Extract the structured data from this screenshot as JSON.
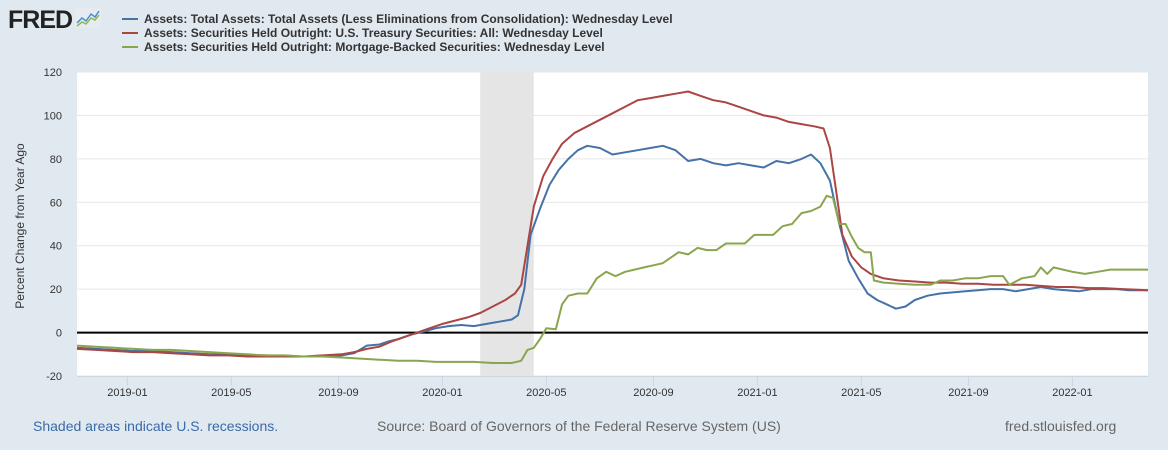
{
  "header": {
    "logo_text": "FRED",
    "logo_icon": "line-chart-icon"
  },
  "footer": {
    "recession_note": "Shaded areas indicate U.S. recessions.",
    "source": "Source: Board of Governors of the Federal Reserve System (US)",
    "site": "fred.stlouisfed.org"
  },
  "chart_data": {
    "type": "line",
    "title": "",
    "xlabel": "",
    "ylabel": "Percent Change from Year Ago",
    "xlim": [
      2018.84,
      2022.24
    ],
    "ylim": [
      -20,
      120
    ],
    "yticks": [
      -20,
      0,
      20,
      40,
      60,
      80,
      100,
      120
    ],
    "xticks": [
      {
        "label": "2019-01",
        "x": 2019.0
      },
      {
        "label": "2019-05",
        "x": 2019.33
      },
      {
        "label": "2019-09",
        "x": 2019.67
      },
      {
        "label": "2020-01",
        "x": 2020.0
      },
      {
        "label": "2020-05",
        "x": 2020.33
      },
      {
        "label": "2020-09",
        "x": 2020.67
      },
      {
        "label": "2021-01",
        "x": 2021.0
      },
      {
        "label": "2021-05",
        "x": 2021.33
      },
      {
        "label": "2021-09",
        "x": 2021.67
      },
      {
        "label": "2022-01",
        "x": 2022.0
      }
    ],
    "grid": true,
    "zero_line": true,
    "legend": "top",
    "recessions": [
      {
        "start": 2020.12,
        "end": 2020.29
      }
    ],
    "series": [
      {
        "name": "Assets: Total Assets: Total Assets (Less Eliminations from Consolidation): Wednesday Level",
        "color": "#4572a7",
        "points": [
          [
            2018.84,
            -7
          ],
          [
            2018.9,
            -7.5
          ],
          [
            2018.96,
            -8
          ],
          [
            2019.02,
            -8.5
          ],
          [
            2019.08,
            -8.5
          ],
          [
            2019.14,
            -9
          ],
          [
            2019.2,
            -9.5
          ],
          [
            2019.26,
            -10
          ],
          [
            2019.32,
            -10
          ],
          [
            2019.38,
            -10.5
          ],
          [
            2019.44,
            -10.5
          ],
          [
            2019.5,
            -11
          ],
          [
            2019.56,
            -11
          ],
          [
            2019.62,
            -11
          ],
          [
            2019.68,
            -10.5
          ],
          [
            2019.72,
            -9.5
          ],
          [
            2019.76,
            -6
          ],
          [
            2019.8,
            -5.5
          ],
          [
            2019.83,
            -4
          ],
          [
            2019.86,
            -3
          ],
          [
            2019.9,
            -1
          ],
          [
            2019.94,
            0.5
          ],
          [
            2019.98,
            2
          ],
          [
            2020.02,
            3
          ],
          [
            2020.06,
            3.5
          ],
          [
            2020.1,
            3
          ],
          [
            2020.14,
            4
          ],
          [
            2020.18,
            5
          ],
          [
            2020.22,
            6
          ],
          [
            2020.24,
            8
          ],
          [
            2020.26,
            20
          ],
          [
            2020.28,
            45
          ],
          [
            2020.31,
            57
          ],
          [
            2020.34,
            68
          ],
          [
            2020.37,
            75
          ],
          [
            2020.4,
            80
          ],
          [
            2020.43,
            84
          ],
          [
            2020.46,
            86
          ],
          [
            2020.5,
            85
          ],
          [
            2020.54,
            82
          ],
          [
            2020.58,
            83
          ],
          [
            2020.62,
            84
          ],
          [
            2020.66,
            85
          ],
          [
            2020.7,
            86
          ],
          [
            2020.74,
            84
          ],
          [
            2020.78,
            79
          ],
          [
            2020.82,
            80
          ],
          [
            2020.86,
            78
          ],
          [
            2020.9,
            77
          ],
          [
            2020.94,
            78
          ],
          [
            2020.98,
            77
          ],
          [
            2021.02,
            76
          ],
          [
            2021.06,
            79
          ],
          [
            2021.1,
            78
          ],
          [
            2021.14,
            80
          ],
          [
            2021.17,
            82
          ],
          [
            2021.2,
            78
          ],
          [
            2021.23,
            70
          ],
          [
            2021.26,
            50
          ],
          [
            2021.29,
            33
          ],
          [
            2021.32,
            25
          ],
          [
            2021.35,
            18
          ],
          [
            2021.38,
            15
          ],
          [
            2021.41,
            13
          ],
          [
            2021.44,
            11
          ],
          [
            2021.47,
            12
          ],
          [
            2021.5,
            15
          ],
          [
            2021.54,
            17
          ],
          [
            2021.58,
            18
          ],
          [
            2021.62,
            18.5
          ],
          [
            2021.66,
            19
          ],
          [
            2021.7,
            19.5
          ],
          [
            2021.74,
            20
          ],
          [
            2021.78,
            20
          ],
          [
            2021.82,
            19
          ],
          [
            2021.86,
            20
          ],
          [
            2021.9,
            21
          ],
          [
            2021.94,
            20
          ],
          [
            2021.98,
            19.5
          ],
          [
            2022.02,
            19
          ],
          [
            2022.06,
            20
          ],
          [
            2022.1,
            20
          ],
          [
            2022.14,
            20
          ],
          [
            2022.18,
            19.5
          ],
          [
            2022.24,
            19.5
          ]
        ]
      },
      {
        "name": "Assets: Securities Held Outright: U.S. Treasury Securities: All: Wednesday Level",
        "color": "#aa4643",
        "points": [
          [
            2018.84,
            -7.5
          ],
          [
            2018.9,
            -8
          ],
          [
            2018.96,
            -8.5
          ],
          [
            2019.02,
            -9
          ],
          [
            2019.08,
            -9
          ],
          [
            2019.14,
            -9.5
          ],
          [
            2019.2,
            -10
          ],
          [
            2019.26,
            -10.5
          ],
          [
            2019.32,
            -10.5
          ],
          [
            2019.38,
            -11
          ],
          [
            2019.44,
            -11
          ],
          [
            2019.5,
            -11
          ],
          [
            2019.56,
            -11
          ],
          [
            2019.62,
            -10.5
          ],
          [
            2019.68,
            -10
          ],
          [
            2019.72,
            -9
          ],
          [
            2019.76,
            -7.5
          ],
          [
            2019.8,
            -6.5
          ],
          [
            2019.84,
            -4
          ],
          [
            2019.88,
            -2
          ],
          [
            2019.92,
            0
          ],
          [
            2019.96,
            2
          ],
          [
            2020.0,
            4
          ],
          [
            2020.04,
            5.5
          ],
          [
            2020.08,
            7
          ],
          [
            2020.12,
            9
          ],
          [
            2020.16,
            12
          ],
          [
            2020.2,
            15
          ],
          [
            2020.23,
            18
          ],
          [
            2020.25,
            22
          ],
          [
            2020.27,
            40
          ],
          [
            2020.29,
            58
          ],
          [
            2020.32,
            72
          ],
          [
            2020.35,
            80
          ],
          [
            2020.38,
            87
          ],
          [
            2020.42,
            92
          ],
          [
            2020.46,
            95
          ],
          [
            2020.5,
            98
          ],
          [
            2020.54,
            101
          ],
          [
            2020.58,
            104
          ],
          [
            2020.62,
            107
          ],
          [
            2020.66,
            108
          ],
          [
            2020.7,
            109
          ],
          [
            2020.74,
            110
          ],
          [
            2020.78,
            111
          ],
          [
            2020.82,
            109
          ],
          [
            2020.86,
            107
          ],
          [
            2020.9,
            106
          ],
          [
            2020.94,
            104
          ],
          [
            2020.98,
            102
          ],
          [
            2021.02,
            100
          ],
          [
            2021.06,
            99
          ],
          [
            2021.1,
            97
          ],
          [
            2021.14,
            96
          ],
          [
            2021.18,
            95
          ],
          [
            2021.21,
            94
          ],
          [
            2021.23,
            85
          ],
          [
            2021.25,
            65
          ],
          [
            2021.27,
            45
          ],
          [
            2021.3,
            35
          ],
          [
            2021.33,
            30
          ],
          [
            2021.36,
            27
          ],
          [
            2021.4,
            25
          ],
          [
            2021.45,
            24
          ],
          [
            2021.5,
            23.5
          ],
          [
            2021.55,
            23
          ],
          [
            2021.6,
            23
          ],
          [
            2021.65,
            22.5
          ],
          [
            2021.7,
            22.5
          ],
          [
            2021.75,
            22
          ],
          [
            2021.8,
            22
          ],
          [
            2021.85,
            22
          ],
          [
            2021.9,
            21.5
          ],
          [
            2021.95,
            21
          ],
          [
            2022.0,
            21
          ],
          [
            2022.05,
            20.5
          ],
          [
            2022.1,
            20.5
          ],
          [
            2022.16,
            20
          ],
          [
            2022.24,
            19.5
          ]
        ]
      },
      {
        "name": "Assets: Securities Held Outright: Mortgage-Backed Securities: Wednesday Level",
        "color": "#89a54e",
        "points": [
          [
            2018.84,
            -6
          ],
          [
            2018.9,
            -6.5
          ],
          [
            2018.96,
            -7
          ],
          [
            2019.02,
            -7.5
          ],
          [
            2019.08,
            -8
          ],
          [
            2019.14,
            -8
          ],
          [
            2019.2,
            -8.5
          ],
          [
            2019.26,
            -9
          ],
          [
            2019.32,
            -9.5
          ],
          [
            2019.38,
            -10
          ],
          [
            2019.44,
            -10.5
          ],
          [
            2019.5,
            -10.5
          ],
          [
            2019.56,
            -11
          ],
          [
            2019.62,
            -11
          ],
          [
            2019.68,
            -11.5
          ],
          [
            2019.74,
            -12
          ],
          [
            2019.8,
            -12.5
          ],
          [
            2019.86,
            -13
          ],
          [
            2019.92,
            -13
          ],
          [
            2019.98,
            -13.5
          ],
          [
            2020.04,
            -13.5
          ],
          [
            2020.1,
            -13.5
          ],
          [
            2020.16,
            -14
          ],
          [
            2020.22,
            -14
          ],
          [
            2020.25,
            -13
          ],
          [
            2020.27,
            -8
          ],
          [
            2020.29,
            -7
          ],
          [
            2020.31,
            -3
          ],
          [
            2020.33,
            2
          ],
          [
            2020.36,
            1.5
          ],
          [
            2020.38,
            13
          ],
          [
            2020.4,
            17
          ],
          [
            2020.43,
            18
          ],
          [
            2020.46,
            18
          ],
          [
            2020.49,
            25
          ],
          [
            2020.52,
            28
          ],
          [
            2020.55,
            26
          ],
          [
            2020.58,
            28
          ],
          [
            2020.61,
            29
          ],
          [
            2020.64,
            30
          ],
          [
            2020.67,
            31
          ],
          [
            2020.7,
            32
          ],
          [
            2020.72,
            34
          ],
          [
            2020.75,
            37
          ],
          [
            2020.78,
            36
          ],
          [
            2020.81,
            39
          ],
          [
            2020.84,
            38
          ],
          [
            2020.87,
            38
          ],
          [
            2020.9,
            41
          ],
          [
            2020.93,
            41
          ],
          [
            2020.96,
            41
          ],
          [
            2020.99,
            45
          ],
          [
            2021.02,
            45
          ],
          [
            2021.05,
            45
          ],
          [
            2021.08,
            49
          ],
          [
            2021.11,
            50
          ],
          [
            2021.14,
            55
          ],
          [
            2021.17,
            56
          ],
          [
            2021.2,
            58
          ],
          [
            2021.22,
            63
          ],
          [
            2021.24,
            62
          ],
          [
            2021.26,
            50
          ],
          [
            2021.28,
            50
          ],
          [
            2021.3,
            44
          ],
          [
            2021.32,
            39
          ],
          [
            2021.34,
            37
          ],
          [
            2021.36,
            37
          ],
          [
            2021.37,
            24
          ],
          [
            2021.4,
            23
          ],
          [
            2021.45,
            22.5
          ],
          [
            2021.5,
            22
          ],
          [
            2021.55,
            22
          ],
          [
            2021.58,
            24
          ],
          [
            2021.62,
            24
          ],
          [
            2021.66,
            25
          ],
          [
            2021.7,
            25
          ],
          [
            2021.74,
            26
          ],
          [
            2021.78,
            26
          ],
          [
            2021.8,
            22
          ],
          [
            2021.84,
            25
          ],
          [
            2021.88,
            26
          ],
          [
            2021.9,
            30
          ],
          [
            2021.92,
            27
          ],
          [
            2021.94,
            30
          ],
          [
            2021.97,
            29
          ],
          [
            2022.0,
            28
          ],
          [
            2022.04,
            27
          ],
          [
            2022.08,
            28
          ],
          [
            2022.12,
            29
          ],
          [
            2022.18,
            29
          ],
          [
            2022.24,
            29
          ]
        ]
      }
    ]
  }
}
